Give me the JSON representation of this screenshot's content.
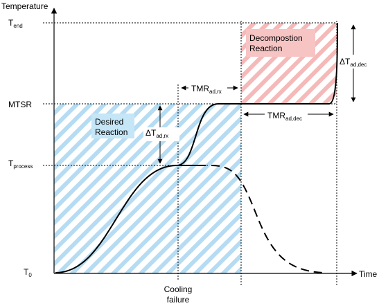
{
  "diagram": {
    "axes": {
      "y_title": "Temperature",
      "x_title": "Time"
    },
    "levels": [
      {
        "id": "t_end",
        "base": "T",
        "sub": "end"
      },
      {
        "id": "mtsr",
        "base": "MTSR",
        "sub": ""
      },
      {
        "id": "t_process",
        "base": "T",
        "sub": "process"
      },
      {
        "id": "t_0",
        "base": "T",
        "sub": "0"
      }
    ],
    "regions": {
      "desired": {
        "line1": "Desired",
        "line2": "Reaction"
      },
      "decomposition": {
        "line1": "Decompostion",
        "line2": "Reaction"
      }
    },
    "annotations": {
      "tmr_rx": {
        "base": "TMR",
        "sub": "ad,rx"
      },
      "tmr_dec": {
        "base": "TMR",
        "sub": "ad,dec"
      },
      "dt_rx": {
        "base": "ΔT",
        "sub": "ad,rx"
      },
      "dt_dec": {
        "base": "ΔT",
        "sub": "ad,dec"
      }
    },
    "event": {
      "line1": "Cooling",
      "line2": "failure"
    },
    "colors": {
      "desired_hatch": "#b5dcf2",
      "desired_label_bg": "#c5e6f7",
      "decomposition_hatch": "#f5b9b9",
      "decomposition_label_bg": "#f7c4c4",
      "curve": "#000000"
    }
  }
}
